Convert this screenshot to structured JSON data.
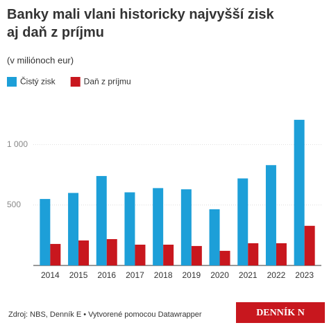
{
  "chart_data": {
    "type": "bar",
    "title": "Banky mali vlani historicky najvyšší zisk aj daň z príjmu",
    "subtitle": "(v miliónoch eur)",
    "categories": [
      "2014",
      "2015",
      "2016",
      "2017",
      "2018",
      "2019",
      "2020",
      "2021",
      "2022",
      "2023"
    ],
    "series": [
      {
        "name": "Čistý zisk",
        "color": "#1d9fd8",
        "values": [
          550,
          600,
          740,
          605,
          640,
          630,
          465,
          720,
          830,
          1205
        ]
      },
      {
        "name": "Daň z príjmu",
        "color": "#c8171e",
        "values": [
          178,
          207,
          218,
          172,
          172,
          161,
          121,
          184,
          184,
          328
        ]
      }
    ],
    "ylim": [
      0,
      1250
    ],
    "yticks": [
      500,
      {
        "value": 1000,
        "label": "1 000"
      }
    ],
    "grid": true,
    "source": "Zdroj: NBS, Denník E • Vytvorené pomocou Datawrapper",
    "logo": "DENNÍK N"
  }
}
